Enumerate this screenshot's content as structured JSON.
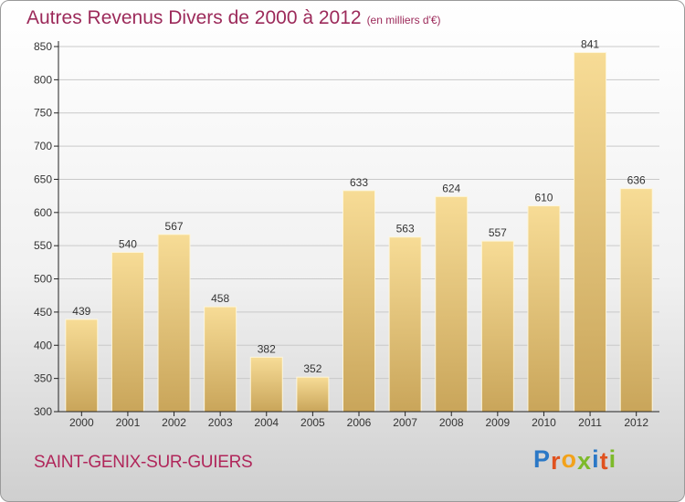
{
  "header": {
    "title": "Autres Revenus Divers de 2000 à 2012",
    "unit": "(en milliers d'€)"
  },
  "footer": {
    "commune": "SAINT-GENIX-SUR-GUIERS",
    "logo": {
      "letters": [
        "P",
        "r",
        "o",
        "x",
        "i",
        "t",
        "i"
      ],
      "colors": [
        "#2b78c6",
        "#e0521f",
        "#f2a21a",
        "#7dba2a",
        "#2b78c6",
        "#e0521f",
        "#7dba2a"
      ]
    }
  },
  "colors": {
    "bar_top": "#f7dc96",
    "bar_bottom": "#c9a55a",
    "bar_edge": "#fdf6dc",
    "axis": "#222222",
    "grid": "#c9c9c9",
    "title": "#9c2a5a"
  },
  "chart_data": {
    "type": "bar",
    "title": "Autres Revenus Divers de 2000 à 2012",
    "subtitle": "(en milliers d'€)",
    "categories": [
      "2000",
      "2001",
      "2002",
      "2003",
      "2004",
      "2005",
      "2006",
      "2007",
      "2008",
      "2009",
      "2010",
      "2011",
      "2012"
    ],
    "values": [
      439,
      540,
      567,
      458,
      382,
      352,
      633,
      563,
      624,
      557,
      610,
      841,
      636
    ],
    "ylim": [
      300,
      850
    ],
    "yticks": [
      300,
      350,
      400,
      450,
      500,
      550,
      600,
      650,
      700,
      750,
      800,
      850
    ],
    "grid": "horizontal",
    "data_labels": true,
    "legend": "none"
  }
}
